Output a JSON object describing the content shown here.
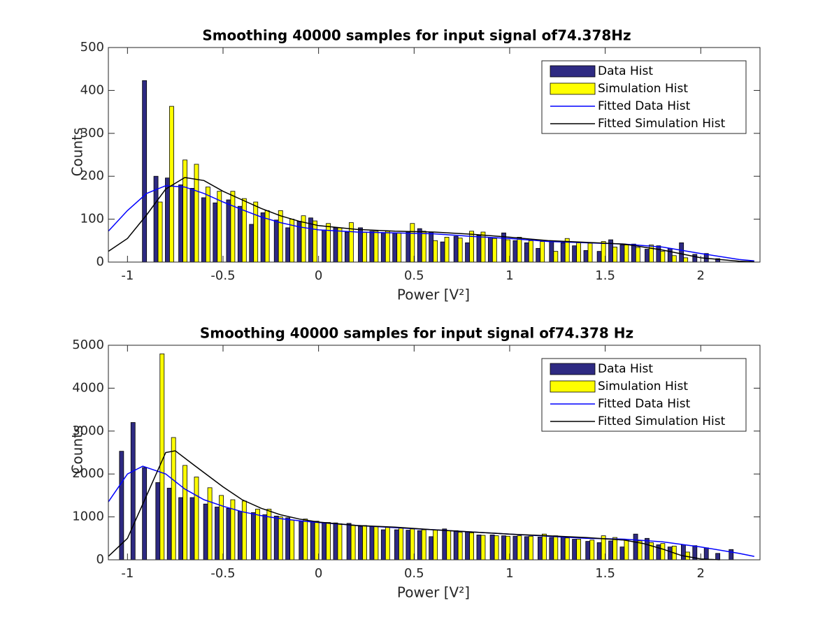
{
  "chart_data": [
    {
      "type": "bar",
      "title": "Smoothing 40000 samples for input signal of74.378Hz",
      "xlabel": "Power [V²]",
      "ylabel": "Counts",
      "xlim": [
        -1.1,
        2.31
      ],
      "ylim": [
        0,
        500
      ],
      "xticks": [
        -1,
        -0.5,
        0,
        0.5,
        1,
        1.5,
        2
      ],
      "yticks": [
        0,
        100,
        200,
        300,
        400,
        500
      ],
      "legend": "northeast",
      "x": [
        -0.9,
        -0.84,
        -0.78,
        -0.71,
        -0.65,
        -0.59,
        -0.53,
        -0.46,
        -0.4,
        -0.34,
        -0.28,
        -0.21,
        -0.15,
        -0.09,
        -0.03,
        0.04,
        0.1,
        0.16,
        0.23,
        0.29,
        0.35,
        0.41,
        0.48,
        0.54,
        0.6,
        0.66,
        0.73,
        0.79,
        0.85,
        0.91,
        0.98,
        1.04,
        1.1,
        1.16,
        1.23,
        1.29,
        1.35,
        1.41,
        1.48,
        1.54,
        1.6,
        1.66,
        1.73,
        1.79,
        1.85,
        1.91,
        1.98,
        2.04,
        2.1
      ],
      "series": [
        {
          "name": "Data Hist",
          "type": "bar",
          "color": "#2e2a82",
          "values": [
            423,
            200,
            196,
            180,
            172,
            150,
            138,
            145,
            130,
            88,
            115,
            98,
            80,
            95,
            103,
            75,
            80,
            70,
            80,
            72,
            68,
            68,
            70,
            78,
            70,
            47,
            60,
            45,
            62,
            57,
            68,
            50,
            45,
            32,
            48,
            45,
            38,
            27,
            25,
            52,
            40,
            42,
            30,
            38,
            32,
            45,
            18,
            20,
            8
          ]
        },
        {
          "name": "Simulation Hist",
          "type": "bar",
          "color": "#ffff00",
          "values": [
            0,
            140,
            363,
            238,
            228,
            175,
            165,
            165,
            148,
            140,
            120,
            120,
            100,
            108,
            96,
            90,
            80,
            92,
            70,
            72,
            72,
            68,
            90,
            72,
            50,
            58,
            56,
            72,
            70,
            55,
            52,
            58,
            50,
            48,
            25,
            55,
            45,
            44,
            48,
            35,
            40,
            34,
            40,
            25,
            15,
            10,
            0,
            0,
            0
          ]
        },
        {
          "name": "Fitted Data Hist",
          "type": "line",
          "color": "#0000ff",
          "x": [
            -1.1,
            -1.0,
            -0.9,
            -0.8,
            -0.7,
            -0.6,
            -0.5,
            -0.4,
            -0.3,
            -0.2,
            -0.1,
            0,
            0.2,
            0.4,
            0.6,
            0.8,
            1.0,
            1.2,
            1.4,
            1.6,
            1.8,
            2.0,
            2.2,
            2.28
          ],
          "values": [
            72,
            120,
            160,
            178,
            175,
            160,
            140,
            122,
            105,
            92,
            82,
            75,
            70,
            68,
            66,
            60,
            55,
            48,
            45,
            42,
            35,
            20,
            6,
            3
          ]
        },
        {
          "name": "Fitted Simulation Hist",
          "type": "line",
          "color": "#000000",
          "x": [
            -1.1,
            -1.0,
            -0.9,
            -0.8,
            -0.7,
            -0.6,
            -0.5,
            -0.4,
            -0.3,
            -0.2,
            -0.1,
            0,
            0.2,
            0.4,
            0.6,
            0.8,
            1.0,
            1.2,
            1.4,
            1.6,
            1.8,
            2.0,
            2.2,
            2.28
          ],
          "values": [
            25,
            55,
            110,
            170,
            197,
            190,
            165,
            145,
            125,
            108,
            95,
            85,
            76,
            72,
            70,
            65,
            58,
            50,
            46,
            42,
            28,
            10,
            2,
            1
          ]
        }
      ]
    },
    {
      "type": "bar",
      "title": "Smoothing 40000 samples for input signal of74.378 Hz",
      "xlabel": "Power [V²]",
      "ylabel": "Counts",
      "xlim": [
        -1.1,
        2.31
      ],
      "ylim": [
        0,
        5000
      ],
      "xticks": [
        -1,
        -0.5,
        0,
        0.5,
        1,
        1.5,
        2
      ],
      "yticks": [
        0,
        1000,
        2000,
        3000,
        4000,
        5000
      ],
      "legend": "northeast",
      "x": [
        -1.02,
        -0.96,
        -0.9,
        -0.83,
        -0.77,
        -0.71,
        -0.65,
        -0.58,
        -0.52,
        -0.46,
        -0.4,
        -0.33,
        -0.27,
        -0.21,
        -0.15,
        -0.08,
        -0.02,
        0.04,
        0.1,
        0.17,
        0.23,
        0.29,
        0.35,
        0.42,
        0.48,
        0.54,
        0.6,
        0.67,
        0.73,
        0.79,
        0.85,
        0.92,
        0.98,
        1.04,
        1.1,
        1.17,
        1.23,
        1.29,
        1.35,
        1.42,
        1.48,
        1.54,
        1.6,
        1.67,
        1.73,
        1.79,
        1.85,
        1.92,
        1.98,
        2.04,
        2.1,
        2.17
      ],
      "series": [
        {
          "name": "Data Hist",
          "type": "bar",
          "color": "#2e2a82",
          "values": [
            2530,
            3200,
            2150,
            1800,
            1670,
            1450,
            1450,
            1300,
            1230,
            1200,
            1130,
            1100,
            1050,
            1020,
            980,
            900,
            880,
            870,
            860,
            850,
            780,
            780,
            700,
            700,
            690,
            680,
            540,
            720,
            680,
            650,
            580,
            580,
            560,
            550,
            540,
            530,
            520,
            540,
            480,
            430,
            400,
            440,
            300,
            600,
            500,
            350,
            300,
            350,
            330,
            280,
            150,
            240
          ]
        },
        {
          "name": "Simulation Hist",
          "type": "bar",
          "color": "#ffff00",
          "values": [
            0,
            0,
            0,
            4800,
            2850,
            2200,
            1930,
            1680,
            1500,
            1400,
            1370,
            1180,
            1180,
            1000,
            930,
            950,
            900,
            870,
            840,
            800,
            800,
            780,
            760,
            750,
            720,
            700,
            700,
            680,
            640,
            630,
            570,
            560,
            550,
            560,
            550,
            600,
            560,
            510,
            480,
            460,
            560,
            520,
            470,
            440,
            400,
            380,
            320,
            180,
            0,
            0,
            0,
            0
          ]
        },
        {
          "name": "Fitted Data Hist",
          "type": "line",
          "color": "#0000ff",
          "x": [
            -1.1,
            -1.0,
            -0.92,
            -0.8,
            -0.7,
            -0.6,
            -0.5,
            -0.4,
            -0.3,
            -0.2,
            -0.1,
            0,
            0.2,
            0.4,
            0.6,
            0.8,
            1.0,
            1.2,
            1.4,
            1.6,
            1.8,
            2.0,
            2.2,
            2.28
          ],
          "values": [
            1350,
            2000,
            2180,
            2000,
            1650,
            1400,
            1250,
            1120,
            1030,
            960,
            910,
            870,
            800,
            750,
            700,
            650,
            600,
            550,
            500,
            480,
            420,
            300,
            150,
            80
          ]
        },
        {
          "name": "Fitted Simulation Hist",
          "type": "line",
          "color": "#000000",
          "x": [
            -1.1,
            -1.0,
            -0.9,
            -0.8,
            -0.75,
            -0.65,
            -0.5,
            -0.4,
            -0.3,
            -0.2,
            -0.1,
            0,
            0.2,
            0.4,
            0.6,
            0.8,
            1.0,
            1.2,
            1.4,
            1.6,
            1.7,
            1.8,
            1.9,
            2.0,
            2.1
          ],
          "values": [
            80,
            500,
            1500,
            2500,
            2540,
            2200,
            1700,
            1400,
            1200,
            1050,
            950,
            880,
            800,
            760,
            700,
            650,
            600,
            560,
            520,
            460,
            380,
            250,
            100,
            20,
            0
          ]
        }
      ]
    }
  ]
}
